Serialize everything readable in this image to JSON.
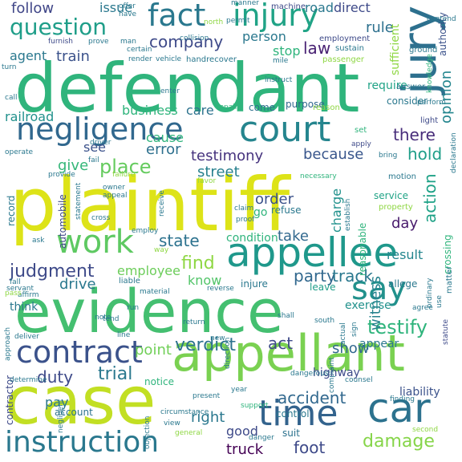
{
  "words": [
    {
      "text": "plaintiff",
      "color": "#dde318"
    },
    {
      "text": "defendant",
      "color": "#2fb47c"
    },
    {
      "text": "evidence",
      "color": "#44bf70"
    },
    {
      "text": "case",
      "color": "#c2df23"
    },
    {
      "text": "appellant",
      "color": "#7ad151"
    },
    {
      "text": "court",
      "color": "#25858e"
    },
    {
      "text": "appellee",
      "color": "#1f988b"
    },
    {
      "text": "negligence",
      "color": "#31688e"
    },
    {
      "text": "fact",
      "color": "#2a788e"
    },
    {
      "text": "injury",
      "color": "#20a386"
    },
    {
      "text": "jury",
      "color": "#2d708e"
    },
    {
      "text": "contract",
      "color": "#3b528b"
    },
    {
      "text": "car",
      "color": "#2c728e"
    },
    {
      "text": "time",
      "color": "#33638d"
    },
    {
      "text": "instruction",
      "color": "#2a788e"
    },
    {
      "text": "question",
      "color": "#1f9e89"
    },
    {
      "text": "work",
      "color": "#5ec962"
    },
    {
      "text": "say",
      "color": "#21918c"
    },
    {
      "text": "judgment",
      "color": "#3e4a89"
    },
    {
      "text": "damage",
      "color": "#86d549"
    },
    {
      "text": "testify",
      "color": "#2fb47c"
    },
    {
      "text": "foot",
      "color": "#3e4a89"
    },
    {
      "text": "verdict",
      "color": "#2c728e"
    },
    {
      "text": "company",
      "color": "#3e4a89"
    },
    {
      "text": "testimony",
      "color": "#46337e"
    },
    {
      "text": "place",
      "color": "#65cb5e"
    },
    {
      "text": "because",
      "color": "#39568c"
    },
    {
      "text": "accident",
      "color": "#31688e"
    },
    {
      "text": "hold",
      "color": "#1f9e89"
    },
    {
      "text": "trial",
      "color": "#2a788e"
    },
    {
      "text": "there",
      "color": "#472c7a"
    },
    {
      "text": "duty",
      "color": "#3e4a89"
    },
    {
      "text": "street",
      "color": "#27808e"
    },
    {
      "text": "action",
      "color": "#1fa287"
    },
    {
      "text": "state",
      "color": "#2c728e"
    },
    {
      "text": "find",
      "color": "#8fd744"
    },
    {
      "text": "know",
      "color": "#52c569"
    },
    {
      "text": "party",
      "color": "#31688e"
    },
    {
      "text": "track",
      "color": "#2a788e"
    },
    {
      "text": "truck",
      "color": "#440154"
    },
    {
      "text": "witness",
      "color": "#26828e"
    },
    {
      "text": "right",
      "color": "#2a788e"
    },
    {
      "text": "follow",
      "color": "#404688"
    },
    {
      "text": "rule",
      "color": "#2d708e"
    },
    {
      "text": "train",
      "color": "#3b528b"
    },
    {
      "text": "law",
      "color": "#482173"
    },
    {
      "text": "person",
      "color": "#2a788e"
    },
    {
      "text": "opinion",
      "color": "#24868e"
    },
    {
      "text": "require",
      "color": "#20a386"
    },
    {
      "text": "give",
      "color": "#35b779"
    },
    {
      "text": "error",
      "color": "#2d708e"
    },
    {
      "text": "cause",
      "color": "#2fb47c"
    },
    {
      "text": "see",
      "color": "#3b528b"
    },
    {
      "text": "drive",
      "color": "#2a788e"
    },
    {
      "text": "employee",
      "color": "#6ccd5a"
    },
    {
      "text": "condition",
      "color": "#2fb47c"
    },
    {
      "text": "take",
      "color": "#31688e"
    },
    {
      "text": "order",
      "color": "#3b528b"
    },
    {
      "text": "day",
      "color": "#481a6c"
    },
    {
      "text": "result",
      "color": "#24868e"
    },
    {
      "text": "charge",
      "color": "#21918c"
    },
    {
      "text": "good",
      "color": "#3e4a89"
    },
    {
      "text": "show",
      "color": "#31688e"
    },
    {
      "text": "act",
      "color": "#3e4a89"
    },
    {
      "text": "point",
      "color": "#70cf57"
    },
    {
      "text": "business",
      "color": "#2fb47c"
    },
    {
      "text": "care",
      "color": "#2c728e"
    },
    {
      "text": "railroad",
      "color": "#21918c"
    },
    {
      "text": "agent",
      "color": "#2a788e"
    },
    {
      "text": "stop",
      "color": "#2fb47c"
    },
    {
      "text": "issue",
      "color": "#2a788e"
    },
    {
      "text": "road",
      "color": "#2a788e"
    },
    {
      "text": "direct",
      "color": "#3e4a89"
    },
    {
      "text": "think",
      "color": "#2a788e"
    },
    {
      "text": "exercise",
      "color": "#21918c"
    },
    {
      "text": "highway",
      "color": "#3e4a89"
    },
    {
      "text": "appear",
      "color": "#2a788e"
    },
    {
      "text": "liability",
      "color": "#3b528b"
    },
    {
      "text": "pay",
      "color": "#2a788e"
    },
    {
      "text": "consider",
      "color": "#2a788e"
    },
    {
      "text": "come",
      "color": "#2d708e"
    },
    {
      "text": "purpose",
      "color": "#31688e"
    },
    {
      "text": "go",
      "color": "#2fb47c"
    },
    {
      "text": "injure",
      "color": "#2a788e"
    },
    {
      "text": "leave",
      "color": "#1f9e89"
    },
    {
      "text": "allege",
      "color": "#2a788e"
    },
    {
      "text": "refuse",
      "color": "#2a788e"
    },
    {
      "text": "service",
      "color": "#20a386"
    },
    {
      "text": "notice",
      "color": "#2fb47c"
    },
    {
      "text": "account",
      "color": "#2c728e"
    },
    {
      "text": "control",
      "color": "#2a788e"
    },
    {
      "text": "suit",
      "color": "#2c728e"
    },
    {
      "text": "record",
      "color": "#2a788e"
    },
    {
      "text": "automobile",
      "color": "#3e4a89"
    },
    {
      "text": "contractor",
      "color": "#3e4a89"
    },
    {
      "text": "sufficient",
      "color": "#8fd744"
    },
    {
      "text": "authority",
      "color": "#3b528b"
    },
    {
      "text": "reasonable",
      "color": "#2fb47c"
    },
    {
      "text": "crossing",
      "color": "#2fb47c"
    },
    {
      "text": "employment",
      "color": "#3e4a89"
    },
    {
      "text": "machine",
      "color": "#3e4a89"
    },
    {
      "text": "manner",
      "color": "#2a788e"
    },
    {
      "text": "man",
      "color": "#2a788e"
    },
    {
      "text": "prove",
      "color": "#2a788e"
    },
    {
      "text": "furnish",
      "color": "#3e4a89"
    },
    {
      "text": "handrecover",
      "color": "#2a788e"
    },
    {
      "text": "sustain",
      "color": "#2a788e"
    },
    {
      "text": "passenger",
      "color": "#8fd744"
    },
    {
      "text": "ground",
      "color": "#2a788e"
    },
    {
      "text": "answer",
      "color": "#2a788e"
    },
    {
      "text": "knowledge",
      "color": "#2fb47c"
    },
    {
      "text": "light",
      "color": "#3e4a89"
    },
    {
      "text": "matter",
      "color": "#2a788e"
    },
    {
      "text": "motion",
      "color": "#2a788e"
    },
    {
      "text": "property",
      "color": "#8fd744"
    },
    {
      "text": "collision",
      "color": "#2a788e"
    },
    {
      "text": "certain",
      "color": "#2a788e"
    },
    {
      "text": "render",
      "color": "#2a788e"
    },
    {
      "text": "vehicle",
      "color": "#2a788e"
    },
    {
      "text": "north",
      "color": "#8fd744"
    },
    {
      "text": "enter",
      "color": "#2a788e"
    },
    {
      "text": "repair",
      "color": "#2fb47c"
    },
    {
      "text": "reason",
      "color": "#8fd744"
    },
    {
      "text": "set",
      "color": "#2fb47c"
    },
    {
      "text": "apply",
      "color": "#3e4a89"
    },
    {
      "text": "bring",
      "color": "#2a788e"
    },
    {
      "text": "necessary",
      "color": "#2fb47c"
    },
    {
      "text": "provide",
      "color": "#2a788e"
    },
    {
      "text": "favor",
      "color": "#8fd744"
    },
    {
      "text": "owner",
      "color": "#2a788e"
    },
    {
      "text": "appeal",
      "color": "#2a788e"
    },
    {
      "text": "statement",
      "color": "#2a788e"
    },
    {
      "text": "ask",
      "color": "#2a788e"
    },
    {
      "text": "employ",
      "color": "#2a788e"
    },
    {
      "text": "way",
      "color": "#8fd744"
    },
    {
      "text": "servant",
      "color": "#2a788e"
    },
    {
      "text": "material",
      "color": "#2a788e"
    },
    {
      "text": "reverse",
      "color": "#2a788e"
    },
    {
      "text": "run",
      "color": "#2a788e"
    },
    {
      "text": "line",
      "color": "#2a788e"
    },
    {
      "text": "deliver",
      "color": "#2a788e"
    },
    {
      "text": "tend",
      "color": "#2a788e"
    },
    {
      "text": "shall",
      "color": "#2a788e"
    },
    {
      "text": "south",
      "color": "#2a788e"
    },
    {
      "text": "agree",
      "color": "#2a788e"
    },
    {
      "text": "statute",
      "color": "#3e4a89"
    },
    {
      "text": "counsel",
      "color": "#2a788e"
    },
    {
      "text": "finding",
      "color": "#2a788e"
    },
    {
      "text": "second",
      "color": "#8fd744"
    },
    {
      "text": "negligent",
      "color": "#2a788e"
    },
    {
      "text": "view",
      "color": "#2a788e"
    },
    {
      "text": "general",
      "color": "#8fd744"
    },
    {
      "text": "danger",
      "color": "#2a788e"
    },
    {
      "text": "circumstance",
      "color": "#2a788e"
    },
    {
      "text": "support",
      "color": "#2fb47c"
    },
    {
      "text": "present",
      "color": "#2a788e"
    },
    {
      "text": "year",
      "color": "#2a788e"
    },
    {
      "text": "dangerous",
      "color": "#2a788e"
    },
    {
      "text": "complaint",
      "color": "#2a788e"
    },
    {
      "text": "proof",
      "color": "#2a788e"
    },
    {
      "text": "claim",
      "color": "#2a788e"
    },
    {
      "text": "receive",
      "color": "#2a788e"
    },
    {
      "text": "cross",
      "color": "#2a788e"
    },
    {
      "text": "establish",
      "color": "#2a788e"
    },
    {
      "text": "perform",
      "color": "#2a788e"
    },
    {
      "text": "declaration",
      "color": "#2a788e"
    },
    {
      "text": "contend",
      "color": "#2a788e"
    },
    {
      "text": "operate",
      "color": "#2a788e"
    },
    {
      "text": "driver",
      "color": "#2a788e"
    },
    {
      "text": "instruct",
      "color": "#2a788e"
    },
    {
      "text": "mile",
      "color": "#2a788e"
    },
    {
      "text": "turn",
      "color": "#2a788e"
    },
    {
      "text": "call",
      "color": "#2a788e"
    },
    {
      "text": "objection",
      "color": "#2a788e"
    },
    {
      "text": "determine",
      "color": "#2a788e"
    },
    {
      "text": "fall",
      "color": "#2a788e"
    },
    {
      "text": "affirm",
      "color": "#2a788e"
    },
    {
      "text": "pass",
      "color": "#8fd744"
    },
    {
      "text": "approach",
      "color": "#2a788e"
    },
    {
      "text": "ordinary",
      "color": "#2a788e"
    },
    {
      "text": "use",
      "color": "#2a788e"
    },
    {
      "text": "offer",
      "color": "#2a788e"
    },
    {
      "text": "have",
      "color": "#2a788e"
    },
    {
      "text": "failure",
      "color": "#8fd744"
    },
    {
      "text": "fail",
      "color": "#2a788e"
    },
    {
      "text": "permit",
      "color": "#2a788e"
    },
    {
      "text": "direction",
      "color": "#2a788e"
    },
    {
      "text": "actual",
      "color": "#2a788e"
    },
    {
      "text": "sign",
      "color": "#2a788e"
    },
    {
      "text": "return",
      "color": "#2a788e"
    },
    {
      "text": "note",
      "color": "#2a788e"
    },
    {
      "text": "liable",
      "color": "#2a788e"
    },
    {
      "text": "new",
      "color": "#2a788e"
    }
  ]
}
